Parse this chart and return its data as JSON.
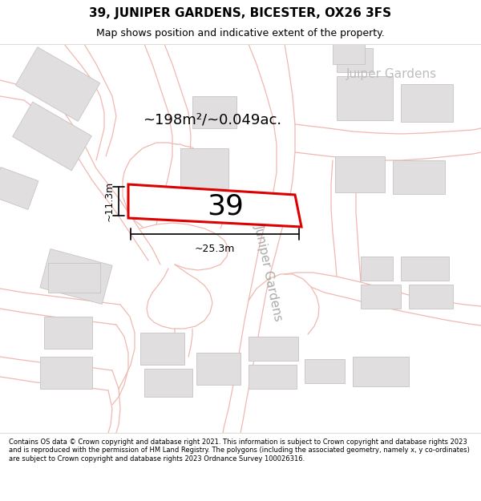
{
  "title": "39, JUNIPER GARDENS, BICESTER, OX26 3FS",
  "subtitle": "Map shows position and indicative extent of the property.",
  "footer": "Contains OS data © Crown copyright and database right 2021. This information is subject to Crown copyright and database rights 2023 and is reproduced with the permission of HM Land Registry. The polygons (including the associated geometry, namely x, y co-ordinates) are subject to Crown copyright and database rights 2023 Ordnance Survey 100026316.",
  "area_label": "~198m²/~0.049ac.",
  "number_label": "39",
  "width_label": "~25.3m",
  "height_label": "~11.3m",
  "map_bg": "#ffffff",
  "building_fill": "#e0dede",
  "building_edge": "#c8c4c4",
  "road_line": "#f0b8b0",
  "subject_stroke": "#dd0000",
  "road_fill": "#f5f0f0",
  "street_label_color": "#aaaaaa",
  "dim_color": "#111111",
  "area_label_size": 13,
  "number_label_size": 26,
  "street_label_size": 11
}
